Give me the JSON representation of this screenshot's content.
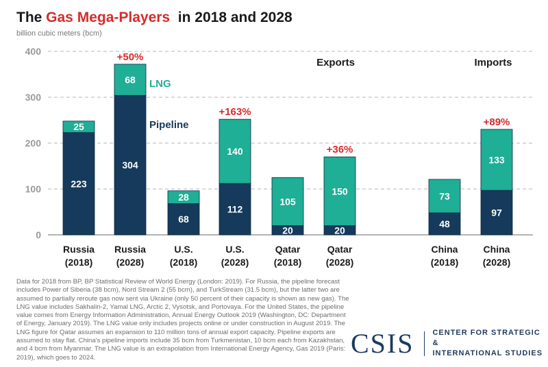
{
  "header": {
    "title_prefix": "The ",
    "title_highlight": "Gas Mega-Players",
    "title_suffix": "  in 2018 and 2028",
    "units": "billion cubic meters (bcm)"
  },
  "colors": {
    "pipeline": "#153a5b",
    "lng": "#1fae96",
    "change": "#d62b2b",
    "grid": "#b5b5b5",
    "axis": "#888888"
  },
  "chart_data": {
    "type": "bar",
    "stacked": true,
    "ylim": [
      0,
      400
    ],
    "yticks": [
      0,
      100,
      200,
      300,
      400
    ],
    "grid": "dashed horizontal",
    "categories": [
      "Russia (2018)",
      "Russia (2028)",
      "U.S. (2018)",
      "U.S. (2028)",
      "Qatar (2018)",
      "Qatar (2028)",
      "China (2018)",
      "China (2028)"
    ],
    "category_lines": [
      [
        "Russia",
        "(2018)"
      ],
      [
        "Russia",
        "(2028)"
      ],
      [
        "U.S.",
        "(2018)"
      ],
      [
        "U.S.",
        "(2028)"
      ],
      [
        "Qatar",
        "(2018)"
      ],
      [
        "Qatar",
        "(2028)"
      ],
      [
        "China",
        "(2018)"
      ],
      [
        "China",
        "(2028)"
      ]
    ],
    "series": [
      {
        "name": "Pipeline",
        "values": [
          223,
          304,
          68,
          112,
          20,
          20,
          48,
          97
        ]
      },
      {
        "name": "LNG",
        "values": [
          25,
          68,
          28,
          140,
          105,
          150,
          73,
          133
        ]
      }
    ],
    "changes": [
      null,
      "+50%",
      null,
      "+163%",
      null,
      "+36%",
      null,
      "+89%"
    ],
    "group_labels": {
      "exports": "Exports",
      "imports": "Imports"
    }
  },
  "footnote": {
    "text": "Data for 2018 from BP, BP Statistical Review of World Energy (London: 2019). For Russia, the pipeline forecast includes Power of Siberia (38 bcm), Nord Stream 2 (55 bcm), and TurkStream (31.5 bcm), but the latter two are assumed to partially reroute gas now sent via Ukraine (only 50 percent of their capacity is shown as new gas). The LNG value includes Sakhalin-2, Yamal LNG, Arctic 2, Vysotsk, and Portovaya. For the United States, the pipeline value comes from Energy Information Administration, Annual Energy Outlook 2019 (Washington, DC: Department of Energy, January 2019). The LNG value only includes projects online or under construction in August 2019. The LNG figure for Qatar assumes an expansion to 110 million tons of annual export capacity. Pipeline exports are assumed to stay flat. China's pipeline imports include 35 bcm from Turkmenistan, 10 bcm each from Kazakhstan, and 4 bcm from Myanmar. The LNG value is an extrapolation from International Energy Agency, Gas 2019 (Paris: 2019), which goes to 2024."
  },
  "logo": {
    "mark": "CSIS",
    "line1": "CENTER FOR STRATEGIC &",
    "line2": "INTERNATIONAL STUDIES"
  }
}
